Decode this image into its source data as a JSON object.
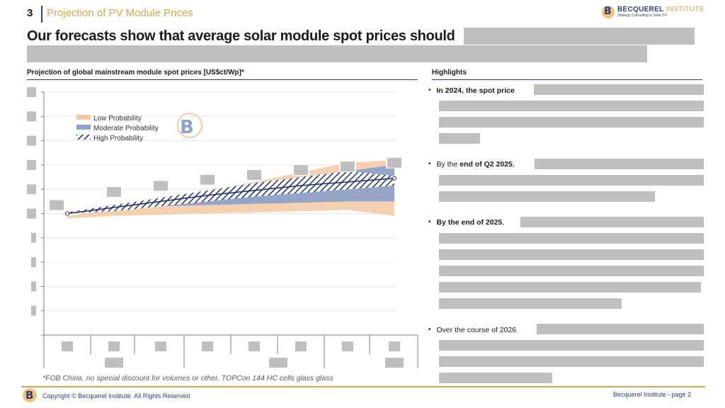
{
  "header": {
    "slide_number": "3",
    "section_title": "Projection of PV Module Prices",
    "logo_name": "BECQUEREL",
    "logo_name_accent": "INSTITUTE",
    "logo_tagline": "Strategy Consulting in Solar PV",
    "logo_mark": "B"
  },
  "title": "Our forecasts show that average solar module spot prices should",
  "chart_header": "Projection of global mainstream module spot prices [US$ct/Wp]*",
  "highlights_header": "Highlights",
  "bullets": [
    {
      "strong": "In 2024, the spot price",
      "rest": ""
    },
    {
      "pre": "By the ",
      "strong": "end of Q2 2025",
      "rest": ","
    },
    {
      "strong": "By the end of 2025",
      "rest": ","
    },
    {
      "pre": "Over the course of 2026",
      "strong": "",
      "rest": ""
    }
  ],
  "chart_data": {
    "type": "area",
    "legend": [
      "Low Probability",
      "Moderate Probability",
      "High Probability"
    ],
    "legend_position": "top-left",
    "grid": true,
    "ylim": [
      0,
      10
    ],
    "x_count": 8,
    "series": [
      {
        "name": "Low Probability",
        "upper": [
          4.9,
          5.2,
          5.5,
          5.9,
          6.3,
          6.7,
          7.1,
          7.2
        ],
        "lower": [
          4.8,
          4.9,
          4.95,
          5.0,
          5.05,
          5.1,
          5.15,
          4.9
        ]
      },
      {
        "name": "Moderate Probability",
        "upper": [
          5.05,
          5.35,
          5.65,
          5.95,
          6.25,
          6.5,
          6.75,
          7.0
        ],
        "lower": [
          5.0,
          5.2,
          5.3,
          5.35,
          5.4,
          5.45,
          5.5,
          5.5
        ]
      },
      {
        "name": "High Probability",
        "upper": [
          5.05,
          5.35,
          5.65,
          5.95,
          6.25,
          6.5,
          6.75,
          6.55
        ],
        "lower": [
          5.0,
          5.1,
          5.3,
          5.5,
          5.7,
          5.85,
          6.0,
          6.15
        ],
        "values": [
          5.0,
          5.25,
          5.5,
          5.75,
          5.95,
          6.15,
          6.3,
          6.45
        ]
      }
    ],
    "colors": {
      "low": "#f5c9a3",
      "moderate": "#8fa2c8",
      "high": "#1f2d6b"
    }
  },
  "footnote": "*FOB China, no special discount for volumes or other, TOPCon 144 HC cells glass glass",
  "footer": {
    "copyright": "Copyright © Becquerel Institute. All Rights Reserved",
    "page": "Becquerel Institute - page 2",
    "logo_mark": "B"
  }
}
